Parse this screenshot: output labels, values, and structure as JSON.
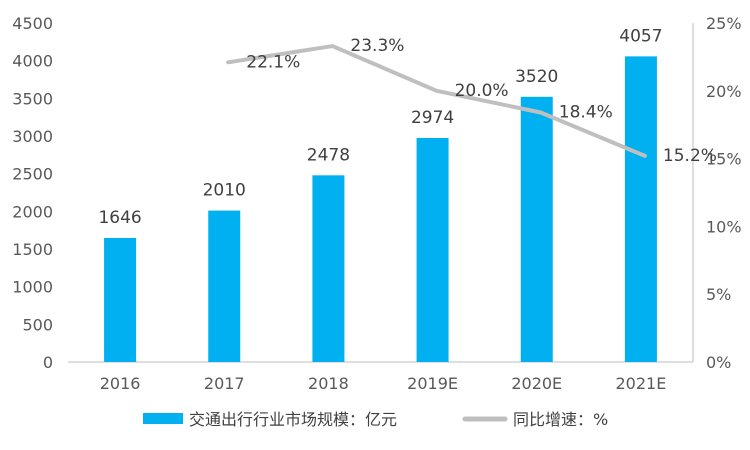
{
  "chart_data": {
    "type": "bar",
    "categories": [
      "2016",
      "2017",
      "2018",
      "2019E",
      "2020E",
      "2021E"
    ],
    "series": [
      {
        "name": "交通出行行业市场规模：亿元",
        "type": "bar",
        "axis": "left",
        "color": "#00B0F0",
        "values": [
          1646,
          2010,
          2478,
          2974,
          3520,
          4057
        ],
        "labels": [
          "1646",
          "2010",
          "2478",
          "2974",
          "3520",
          "4057"
        ]
      },
      {
        "name": "同比增速：%",
        "type": "line",
        "axis": "right",
        "color": "#BFBFBF",
        "values": [
          null,
          22.1,
          23.3,
          20.0,
          18.4,
          15.2
        ],
        "labels": [
          "",
          "22.1%",
          "23.3%",
          "20.0%",
          "18.4%",
          "15.2%"
        ]
      }
    ],
    "left_axis": {
      "ylim": [
        0,
        4500
      ],
      "ticks": [
        "0",
        "500",
        "1000",
        "1500",
        "2000",
        "2500",
        "3000",
        "3500",
        "4000",
        "4500"
      ]
    },
    "right_axis": {
      "ylim": [
        0,
        25
      ],
      "ticks": [
        "0%",
        "5%",
        "10%",
        "15%",
        "20%",
        "25%"
      ]
    },
    "grid": false,
    "legend_position": "bottom"
  }
}
